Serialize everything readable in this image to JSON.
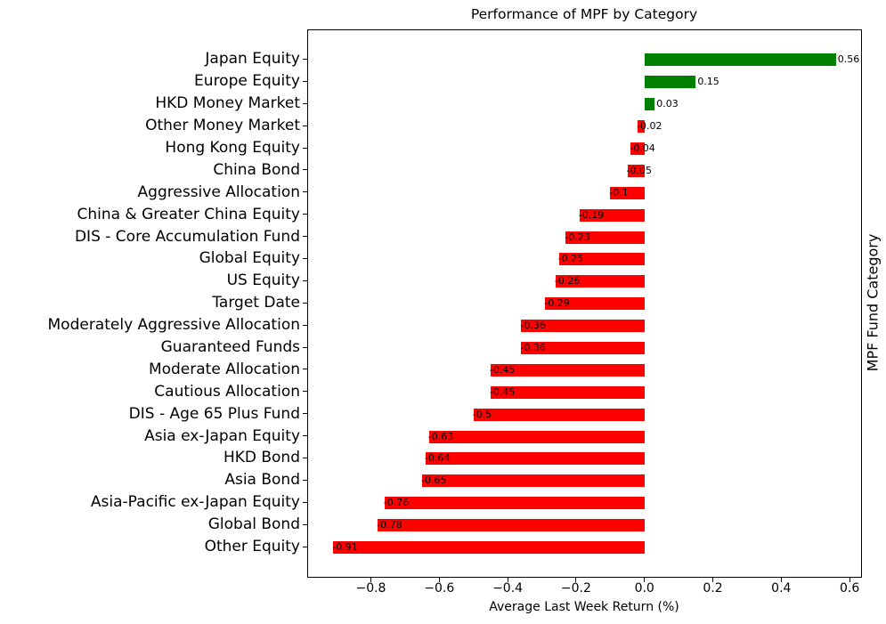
{
  "figure": {
    "background": "#ffffff",
    "spine_color": "#000000",
    "text_color": "#000000"
  },
  "chart_data": {
    "type": "bar",
    "orientation": "horizontal",
    "title": "Performance of MPF by Category",
    "xlabel": "Average Last Week Return (%)",
    "ylabel": "MPF Fund Category",
    "ylabel_position": "right",
    "grid": false,
    "legend": "none",
    "categories": [
      "Japan Equity",
      "Europe Equity",
      "HKD Money Market",
      "Other Money Market",
      "Hong Kong Equity",
      "China Bond",
      "Aggressive Allocation",
      "China & Greater China Equity",
      "DIS - Core Accumulation Fund",
      "Global Equity",
      "US Equity",
      "Target Date",
      "Moderately Aggressive Allocation",
      "Guaranteed Funds",
      "Moderate Allocation",
      "Cautious Allocation",
      "DIS - Age 65 Plus Fund",
      "Asia ex-Japan Equity",
      "HKD Bond",
      "Asia Bond",
      "Asia-Pacific ex-Japan Equity",
      "Global Bond",
      "Other Equity"
    ],
    "values": [
      0.56,
      0.15,
      0.03,
      -0.02,
      -0.04,
      -0.05,
      -0.1,
      -0.19,
      -0.23,
      -0.25,
      -0.26,
      -0.29,
      -0.36,
      -0.36,
      -0.45,
      -0.45,
      -0.5,
      -0.63,
      -0.64,
      -0.65,
      -0.76,
      -0.78,
      -0.91
    ],
    "value_labels": [
      "0.56",
      "0.15",
      "0.03",
      "-0.02",
      "-0.04",
      "-0.05",
      "-0.1",
      "-0.19",
      "-0.23",
      "-0.25",
      "-0.26",
      "-0.29",
      "-0.36",
      "-0.36",
      "-0.45",
      "-0.45",
      "-0.5",
      "-0.63",
      "-0.64",
      "-0.65",
      "-0.76",
      "-0.78",
      "-0.91"
    ],
    "bar_colors": {
      "positive": "#008000",
      "negative": "#ff0000"
    },
    "xlim": [
      -0.9835,
      0.6335
    ],
    "xticks": [
      -0.8,
      -0.6,
      -0.4,
      -0.2,
      0.0,
      0.2,
      0.4,
      0.6
    ],
    "xtick_labels": [
      "−0.8",
      "−0.6",
      "−0.4",
      "−0.2",
      "0.0",
      "0.2",
      "0.4",
      "0.6"
    ]
  }
}
